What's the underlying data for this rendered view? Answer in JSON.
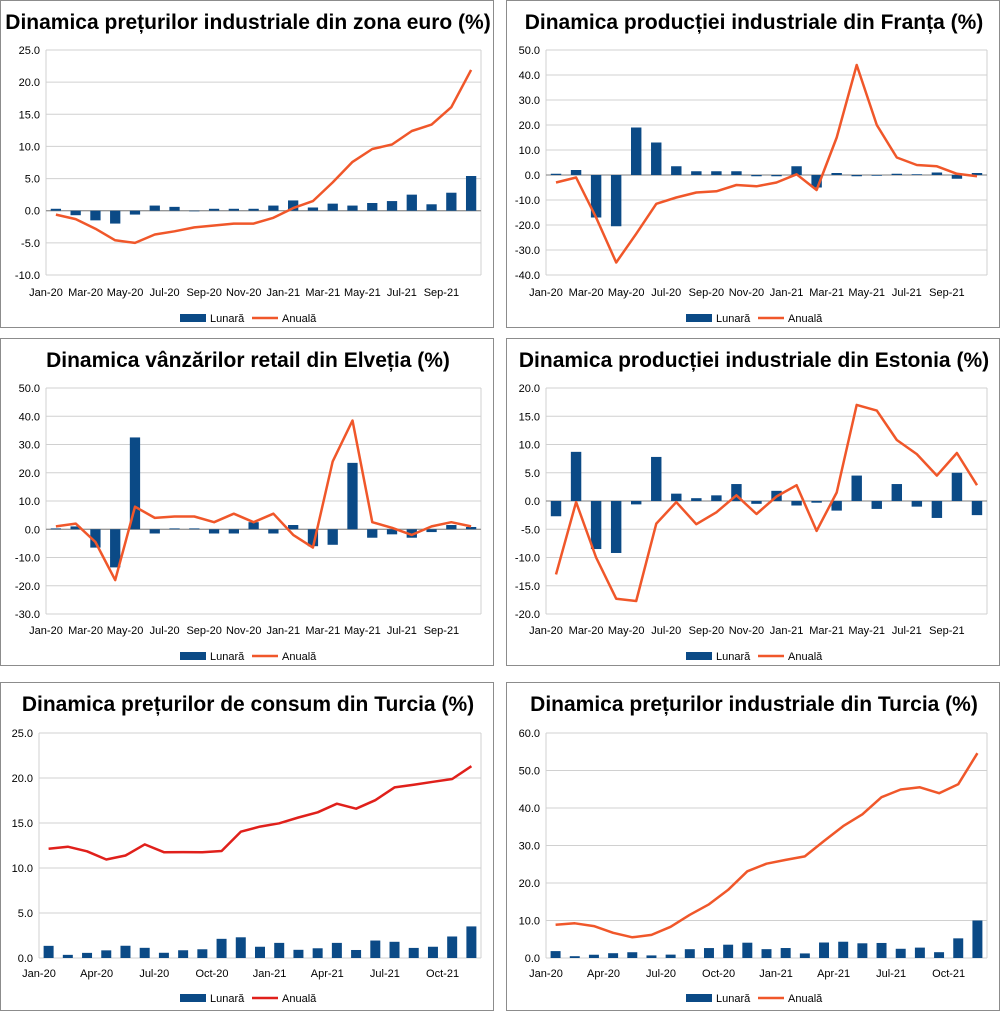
{
  "colors": {
    "bar": "#0b4a86",
    "line_orange": "#f0572a",
    "line_red": "#e0201b",
    "grid": "#d0d0d0",
    "zero": "#7f7f7f"
  },
  "legend_labels": {
    "bar": "Lunară",
    "line": "Anuală"
  },
  "chart_data": [
    {
      "type": "bar+line",
      "title": "Dinamica prețurilor industriale din zona euro (%)",
      "yticks": [
        "-10.0",
        "-5.0",
        "0.0",
        "5.0",
        "10.0",
        "15.0",
        "20.0",
        "25.0"
      ],
      "ylim": [
        -10,
        25
      ],
      "xticks": [
        "Jan-20",
        "Mar-20",
        "May-20",
        "Jul-20",
        "Sep-20",
        "Nov-20",
        "Jan-21",
        "Mar-21",
        "May-21",
        "Jul-21",
        "Sep-21"
      ],
      "bar_series": {
        "name": "Lunară",
        "values": [
          0.3,
          -0.7,
          -1.5,
          -2.0,
          -0.6,
          0.8,
          0.6,
          0.0,
          0.3,
          0.3,
          0.3,
          0.8,
          1.6,
          0.5,
          1.1,
          0.8,
          1.2,
          1.5,
          2.5,
          1.0,
          2.8,
          5.4
        ]
      },
      "line_series": {
        "name": "Anuală",
        "color": "orange",
        "values": [
          -0.6,
          -1.3,
          -2.8,
          -4.6,
          -5.0,
          -3.7,
          -3.2,
          -2.6,
          -2.3,
          -2.0,
          -2.0,
          -1.1,
          0.4,
          1.5,
          4.4,
          7.6,
          9.6,
          10.3,
          12.4,
          13.4,
          16.1,
          21.9
        ]
      }
    },
    {
      "type": "bar+line",
      "title": "Dinamica producției industriale din Franța (%)",
      "yticks": [
        "-40.0",
        "-30.0",
        "-20.0",
        "-10.0",
        "0.0",
        "10.0",
        "20.0",
        "30.0",
        "40.0",
        "50.0"
      ],
      "ylim": [
        -40,
        50
      ],
      "xticks": [
        "Jan-20",
        "Mar-20",
        "May-20",
        "Jul-20",
        "Sep-20",
        "Nov-20",
        "Jan-21",
        "Mar-21",
        "May-21",
        "Jul-21",
        "Sep-21"
      ],
      "bar_series": {
        "name": "Lunară",
        "values": [
          0.5,
          2.0,
          -17.0,
          -20.5,
          19.0,
          13.0,
          3.5,
          1.5,
          1.5,
          1.5,
          -0.5,
          -0.5,
          3.5,
          -5.0,
          0.8,
          -0.5,
          -0.3,
          0.5,
          0.3,
          1.0,
          -1.5,
          0.8
        ]
      },
      "line_series": {
        "name": "Anuală",
        "color": "orange",
        "values": [
          -3.0,
          -1.0,
          -17.0,
          -35.0,
          -23.5,
          -11.5,
          -9.0,
          -7.0,
          -6.5,
          -4.0,
          -4.5,
          -3.0,
          0.3,
          -6.0,
          15.0,
          44.0,
          20.0,
          7.0,
          4.0,
          3.5,
          0.5,
          -0.5
        ]
      }
    },
    {
      "type": "bar+line",
      "title": "Dinamica vânzărilor retail din Elveția (%)",
      "yticks": [
        "-30.0",
        "-20.0",
        "-10.0",
        "0.0",
        "10.0",
        "20.0",
        "30.0",
        "40.0",
        "50.0"
      ],
      "ylim": [
        -30,
        50
      ],
      "xticks": [
        "Jan-20",
        "Mar-20",
        "May-20",
        "Jul-20",
        "Sep-20",
        "Nov-20",
        "Jan-21",
        "Mar-21",
        "May-21",
        "Jul-21",
        "Sep-21"
      ],
      "bar_series": {
        "name": "Lunară",
        "values": [
          0.3,
          1.0,
          -6.5,
          -13.5,
          32.5,
          -1.5,
          0.3,
          0.3,
          -1.5,
          -1.5,
          2.5,
          -1.5,
          1.5,
          -6.0,
          -5.5,
          23.5,
          -3.0,
          -1.8,
          -3.0,
          -1.0,
          1.5,
          0.8
        ]
      },
      "line_series": {
        "name": "Anuală",
        "color": "orange",
        "values": [
          1.0,
          2.0,
          -4.5,
          -18.0,
          8.0,
          4.0,
          4.5,
          4.5,
          2.5,
          5.5,
          2.5,
          5.5,
          -2.0,
          -6.5,
          24.0,
          38.5,
          2.5,
          0.5,
          -2.0,
          1.0,
          2.5,
          1.0
        ]
      }
    },
    {
      "type": "bar+line",
      "title": "Dinamica producției industriale din Estonia (%)",
      "yticks": [
        "-20.0",
        "-15.0",
        "-10.0",
        "-5.0",
        "0.0",
        "5.0",
        "10.0",
        "15.0",
        "20.0"
      ],
      "ylim": [
        -20,
        20
      ],
      "xticks": [
        "Jan-20",
        "Mar-20",
        "May-20",
        "Jul-20",
        "Sep-20",
        "Nov-20",
        "Jan-21",
        "Mar-21",
        "May-21",
        "Jul-21",
        "Sep-21"
      ],
      "bar_series": {
        "name": "Lunară",
        "values": [
          -2.7,
          8.7,
          -8.5,
          -9.2,
          -0.6,
          7.8,
          1.3,
          0.5,
          1.0,
          3.0,
          -0.5,
          1.8,
          -0.8,
          -0.3,
          -1.7,
          4.5,
          -1.4,
          3.0,
          -1.0,
          -3.0,
          5.0,
          -2.5
        ]
      },
      "line_series": {
        "name": "Anuală",
        "color": "orange",
        "values": [
          -13.0,
          -0.2,
          -10.0,
          -17.3,
          -17.7,
          -4.0,
          -0.2,
          -4.1,
          -2.0,
          1.0,
          -2.3,
          0.8,
          2.8,
          -5.3,
          1.5,
          17.0,
          16.0,
          10.8,
          8.3,
          4.5,
          8.5,
          2.8
        ]
      }
    },
    {
      "type": "bar+line",
      "title": "Dinamica prețurilor de consum din Turcia (%)",
      "yticks": [
        "0.0",
        "5.0",
        "10.0",
        "15.0",
        "20.0",
        "25.0"
      ],
      "ylim": [
        0,
        25
      ],
      "xticks": [
        "Jan-20",
        "Apr-20",
        "Jul-20",
        "Oct-20",
        "Jan-21",
        "Apr-21",
        "Jul-21",
        "Oct-21"
      ],
      "bar_series": {
        "name": "Lunară",
        "values": [
          1.35,
          0.35,
          0.57,
          0.85,
          1.36,
          1.13,
          0.58,
          0.86,
          0.97,
          2.13,
          2.3,
          1.25,
          1.68,
          0.91,
          1.08,
          1.68,
          0.89,
          1.94,
          1.8,
          1.12,
          1.25,
          2.39,
          3.51
        ]
      },
      "line_series": {
        "name": "Anuală",
        "color": "red",
        "values": [
          12.15,
          12.37,
          11.86,
          10.94,
          11.39,
          12.62,
          11.76,
          11.77,
          11.75,
          11.89,
          14.03,
          14.6,
          14.97,
          15.61,
          16.19,
          17.14,
          16.59,
          17.53,
          18.95,
          19.25,
          19.58,
          19.89,
          21.31
        ]
      }
    },
    {
      "type": "bar+line",
      "title": "Dinamica prețurilor industriale din Turcia (%)",
      "yticks": [
        "0.0",
        "10.0",
        "20.0",
        "30.0",
        "40.0",
        "50.0",
        "60.0"
      ],
      "ylim": [
        0,
        60
      ],
      "xticks": [
        "Jan-20",
        "Apr-20",
        "Jul-20",
        "Oct-20",
        "Jan-21",
        "Apr-21",
        "Jul-21",
        "Oct-21"
      ],
      "bar_series": {
        "name": "Lunară",
        "values": [
          1.84,
          0.48,
          0.87,
          1.28,
          1.54,
          0.69,
          0.9,
          2.35,
          2.65,
          3.55,
          4.08,
          2.36,
          2.66,
          1.22,
          4.13,
          4.34,
          3.92,
          4.01,
          2.46,
          2.77,
          1.55,
          5.24,
          10.0
        ]
      },
      "line_series": {
        "name": "Anuală",
        "color": "orange",
        "values": [
          8.84,
          9.26,
          8.5,
          6.71,
          5.53,
          6.17,
          8.33,
          11.53,
          14.33,
          18.2,
          23.11,
          25.15,
          26.16,
          27.09,
          31.2,
          35.17,
          38.33,
          42.89,
          44.92,
          45.52,
          43.96,
          46.31,
          54.62
        ]
      }
    }
  ]
}
